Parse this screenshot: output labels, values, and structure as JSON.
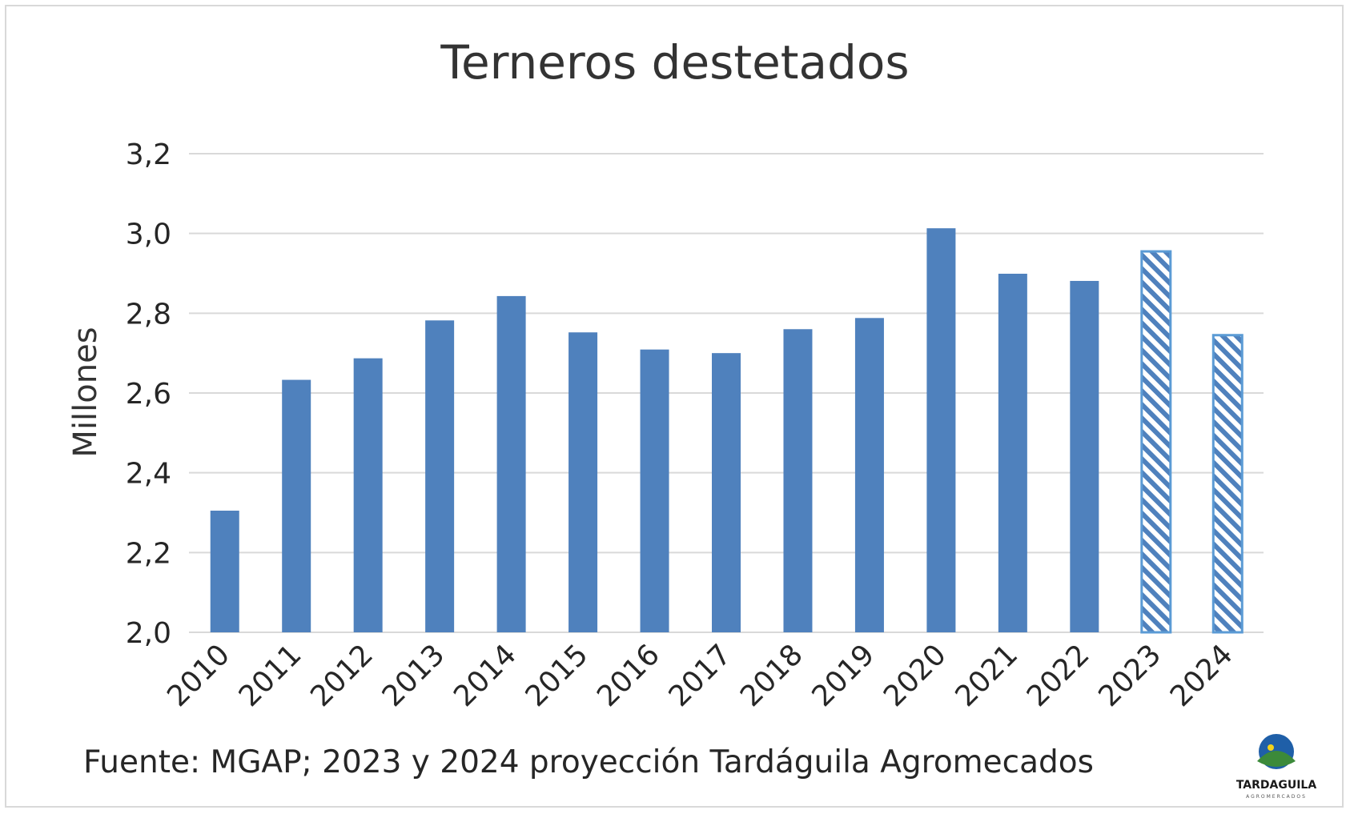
{
  "chart_data": {
    "type": "bar",
    "title": "Terneros destetados",
    "ylabel": "Millones",
    "xlabel": "",
    "ylim": [
      2.0,
      3.2
    ],
    "yticks": [
      "2,0",
      "2,2",
      "2,4",
      "2,6",
      "2,8",
      "3,0",
      "3,2"
    ],
    "yticks_values": [
      2.0,
      2.2,
      2.4,
      2.6,
      2.8,
      3.0,
      3.2
    ],
    "categories": [
      "2010",
      "2011",
      "2012",
      "2013",
      "2014",
      "2015",
      "2016",
      "2017",
      "2018",
      "2019",
      "2020",
      "2021",
      "2022",
      "2023",
      "2024"
    ],
    "values": [
      2.305,
      2.633,
      2.687,
      2.782,
      2.843,
      2.752,
      2.709,
      2.7,
      2.76,
      2.788,
      3.013,
      2.899,
      2.881,
      2.955,
      2.745
    ],
    "projected": [
      false,
      false,
      false,
      false,
      false,
      false,
      false,
      false,
      false,
      false,
      false,
      false,
      false,
      true,
      true
    ],
    "grid": true,
    "bar_color": "#4f81bd",
    "projection_stroke": "#5b9bd5"
  },
  "source": "Fuente: MGAP; 2023 y 2024 proyección Tardáguila Agromecados",
  "logo": {
    "text": "TARDAGUILA",
    "subtext": "AGROMERCADOS",
    "colors": {
      "blue": "#1f5fa8",
      "green": "#3c8a3a",
      "yellow": "#f2d21b",
      "text": "#1a1a1a"
    }
  }
}
